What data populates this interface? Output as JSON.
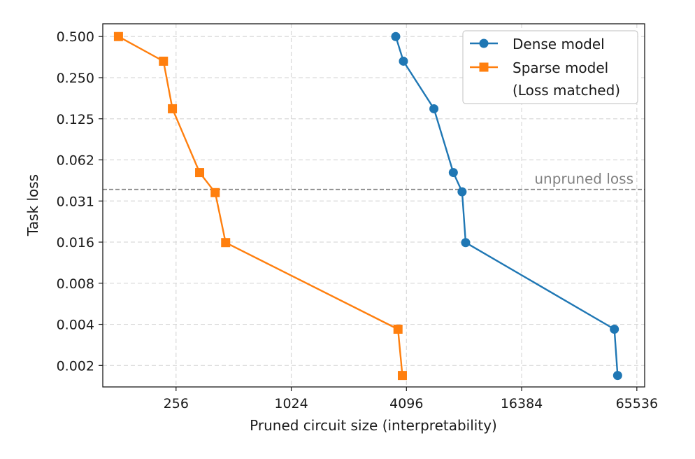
{
  "chart_data": {
    "type": "line",
    "xscale": "log2",
    "yscale": "log2",
    "xlabel": "Pruned circuit size (interpretability)",
    "ylabel": "Task loss",
    "xlim": [
      106,
      72000
    ],
    "ylim": [
      0.00136,
      0.62
    ],
    "xticks": [
      256,
      1024,
      4096,
      16384,
      65536
    ],
    "xtick_labels": [
      "256",
      "1024",
      "4096",
      "16384",
      "65536"
    ],
    "yticks": [
      0.5,
      0.25,
      0.125,
      0.0625,
      0.03125,
      0.015625,
      0.0078125,
      0.00390625,
      0.001953125
    ],
    "ytick_labels": [
      "0.500",
      "0.250",
      "0.125",
      "0.062",
      "0.031",
      "0.016",
      "0.008",
      "0.004",
      "0.002"
    ],
    "grid": true,
    "legend_position": "top-right",
    "series": [
      {
        "name": "Dense model",
        "color": "#1f77b4",
        "marker": "circle",
        "x": [
          3600,
          3950,
          5700,
          7200,
          8000,
          8350,
          50000,
          52000
        ],
        "y": [
          0.5,
          0.33,
          0.148,
          0.0505,
          0.0365,
          0.0155,
          0.0036,
          0.00165
        ]
      },
      {
        "name": "Sparse model",
        "color": "#ff7f0e",
        "marker": "square",
        "x": [
          128,
          220,
          245,
          340,
          410,
          465,
          3700,
          3900
        ],
        "y": [
          0.5,
          0.33,
          0.148,
          0.0505,
          0.036,
          0.0155,
          0.0036,
          0.00165
        ]
      }
    ],
    "legend_note": "(Loss matched)",
    "reference_line": {
      "y": 0.038,
      "label": "unpruned loss",
      "color": "#808080"
    }
  }
}
